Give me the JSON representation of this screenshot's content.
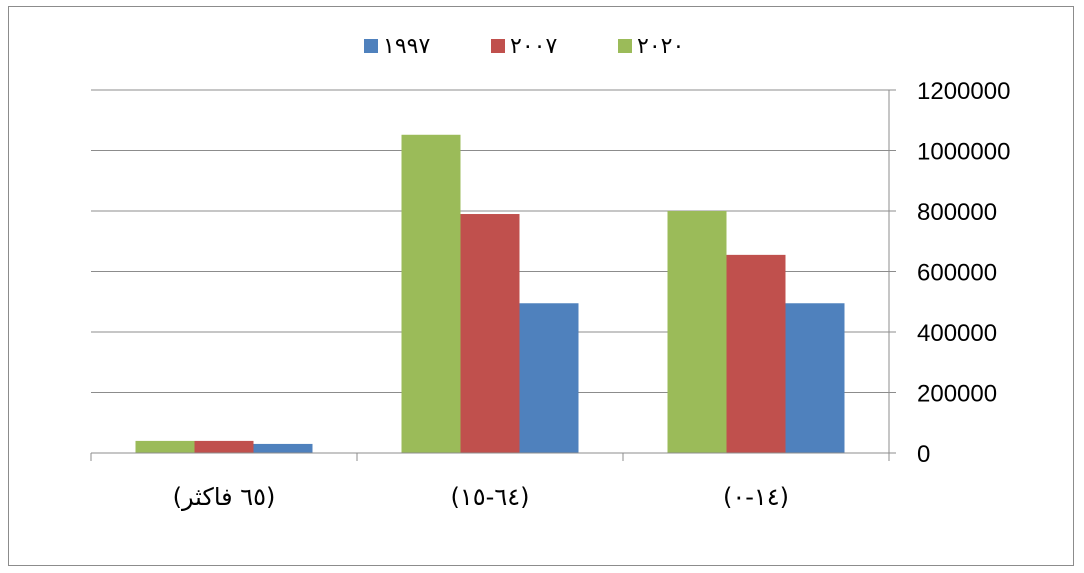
{
  "chart_data": {
    "type": "bar",
    "categories": [
      "(٦٥ فاكثر)",
      "(٦٤-١٥)",
      "(١٤-٠)"
    ],
    "series": [
      {
        "name": "٢٠٢٠",
        "color": "#9BBB59",
        "values": [
          40000,
          1052000,
          800000
        ]
      },
      {
        "name": "٢٠٠٧",
        "color": "#C0504D",
        "values": [
          40000,
          790000,
          655000
        ]
      },
      {
        "name": "١٩٩٧",
        "color": "#4F81BD",
        "values": [
          30000,
          495000,
          495000
        ]
      }
    ],
    "legend_order": [
      "١٩٩٧",
      "٢٠٠٧",
      "٢٠٢٠"
    ],
    "ylim": [
      0,
      1200000
    ],
    "yticks": [
      "0",
      "200000",
      "400000",
      "600000",
      "800000",
      "1000000",
      "1200000"
    ],
    "ytick_values": [
      0,
      200000,
      400000,
      600000,
      800000,
      1000000,
      1200000
    ],
    "y_axis_side": "right",
    "legend_position": "top",
    "grid": true
  }
}
